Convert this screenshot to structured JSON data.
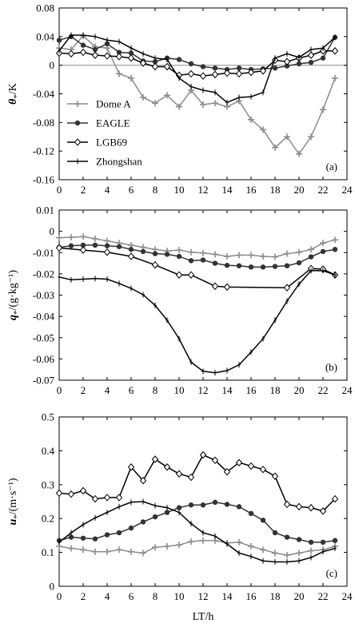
{
  "figure": {
    "xlabel": "LT/h",
    "x_ticks": [
      0,
      2,
      4,
      6,
      8,
      10,
      12,
      14,
      16,
      18,
      20,
      22,
      24
    ]
  },
  "series_styles": [
    {
      "name": "Dome A",
      "color": "#8c8c8c",
      "marker": "plus"
    },
    {
      "name": "EAGLE",
      "color": "#333333",
      "marker": "dot"
    },
    {
      "name": "LGB69",
      "color": "#000000",
      "marker": "diamond"
    },
    {
      "name": "Zhongshan",
      "color": "#000000",
      "marker": "tick"
    }
  ],
  "chart_data": [
    {
      "type": "line",
      "panel_label": "(a)",
      "ylabel_main": "θ",
      "ylabel_sub": "*",
      "ylabel_unit": "/K",
      "xlim": [
        0,
        24
      ],
      "ylim": [
        -0.16,
        0.08
      ],
      "y_ticks": [
        "0.08",
        "0.04",
        "0",
        "-0.04",
        "-0.08",
        "-0.12",
        "-0.16"
      ],
      "y_tick_values": [
        0.08,
        0.04,
        0,
        -0.04,
        -0.08,
        -0.12,
        -0.16
      ],
      "zero_line": true,
      "legend": {
        "placement": "middle-left",
        "entries": [
          "Dome A",
          "EAGLE",
          "LGB69",
          "Zhongshan"
        ]
      },
      "series": [
        {
          "name": "Dome A",
          "x": [
            0,
            1,
            2,
            3,
            4,
            5,
            6,
            7,
            8,
            9,
            10,
            11,
            12,
            13,
            14,
            15,
            16,
            17,
            18,
            19,
            20,
            21,
            22,
            23
          ],
          "values": [
            0.024,
            0.022,
            0.041,
            0.026,
            0.024,
            -0.012,
            -0.018,
            -0.045,
            -0.053,
            -0.042,
            -0.058,
            -0.035,
            -0.055,
            -0.053,
            -0.058,
            -0.05,
            -0.076,
            -0.09,
            -0.115,
            -0.1,
            -0.124,
            -0.1,
            -0.062,
            -0.018
          ]
        },
        {
          "name": "EAGLE",
          "x": [
            0,
            1,
            2,
            3,
            4,
            5,
            6,
            7,
            8,
            9,
            10,
            11,
            12,
            13,
            14,
            15,
            16,
            17,
            18,
            19,
            20,
            21,
            22,
            23
          ],
          "values": [
            0.035,
            0.04,
            0.028,
            0.022,
            0.03,
            0.018,
            0.017,
            0.006,
            0.005,
            0.01,
            0.008,
            0.002,
            -0.002,
            -0.004,
            -0.006,
            -0.004,
            -0.006,
            -0.005,
            -0.004,
            -0.001,
            0.002,
            0.004,
            0.01,
            0.039
          ]
        },
        {
          "name": "LGB69",
          "x": [
            0,
            1,
            2,
            3,
            4,
            5,
            6,
            7,
            8,
            9,
            10,
            11,
            12,
            13,
            14,
            15,
            16,
            17,
            18,
            19,
            20,
            21,
            22,
            23
          ],
          "values": [
            0.017,
            0.016,
            0.018,
            0.014,
            0.013,
            0.012,
            0.01,
            0.003,
            -0.002,
            -0.002,
            -0.014,
            -0.012,
            -0.015,
            -0.013,
            -0.011,
            -0.012,
            -0.01,
            -0.008,
            0.007,
            0.005,
            0.01,
            0.014,
            0.02,
            0.02
          ]
        },
        {
          "name": "Zhongshan",
          "x": [
            0,
            1,
            2,
            3,
            4,
            5,
            6,
            7,
            8,
            9,
            10,
            11,
            12,
            13,
            14,
            15,
            16,
            17,
            18,
            19,
            20,
            21,
            22,
            23
          ],
          "values": [
            0.02,
            0.042,
            0.042,
            0.04,
            0.035,
            0.033,
            0.024,
            0.016,
            0.01,
            0.008,
            -0.018,
            -0.03,
            -0.035,
            -0.038,
            -0.052,
            -0.045,
            -0.044,
            -0.038,
            0.01,
            0.016,
            0.011,
            0.022,
            0.024,
            0.039
          ]
        }
      ]
    },
    {
      "type": "line",
      "panel_label": "(b)",
      "ylabel_main": "q",
      "ylabel_sub": "*",
      "ylabel_unit": "/(g·kg⁻¹)",
      "xlim": [
        0,
        24
      ],
      "ylim": [
        -0.07,
        0.01
      ],
      "y_ticks": [
        "0.01",
        "0",
        "-0.01",
        "-0.02",
        "-0.03",
        "-0.04",
        "-0.05",
        "-0.06",
        "-0.07"
      ],
      "y_tick_values": [
        0.01,
        0,
        -0.01,
        -0.02,
        -0.03,
        -0.04,
        -0.05,
        -0.06,
        -0.07
      ],
      "series": [
        {
          "name": "Dome A",
          "x": [
            0,
            1,
            2,
            3,
            4,
            5,
            6,
            7,
            8,
            9,
            10,
            11,
            12,
            13,
            14,
            15,
            16,
            17,
            18,
            19,
            20,
            21,
            22,
            23
          ],
          "values": [
            -0.003,
            -0.0028,
            -0.0025,
            -0.0035,
            -0.0045,
            -0.0055,
            -0.0065,
            -0.0075,
            -0.0085,
            -0.0092,
            -0.0088,
            -0.0098,
            -0.0102,
            -0.0108,
            -0.0118,
            -0.0112,
            -0.0112,
            -0.0118,
            -0.012,
            -0.0105,
            -0.0098,
            -0.0085,
            -0.0055,
            -0.004
          ]
        },
        {
          "name": "EAGLE",
          "x": [
            0,
            1,
            2,
            3,
            4,
            5,
            6,
            7,
            8,
            9,
            10,
            11,
            12,
            13,
            14,
            15,
            16,
            17,
            18,
            19,
            20,
            21,
            22,
            23
          ],
          "values": [
            -0.0075,
            -0.0068,
            -0.0065,
            -0.0065,
            -0.0068,
            -0.0072,
            -0.0085,
            -0.0095,
            -0.0105,
            -0.0108,
            -0.0118,
            -0.0138,
            -0.0135,
            -0.015,
            -0.016,
            -0.0162,
            -0.0168,
            -0.0168,
            -0.0165,
            -0.0162,
            -0.0148,
            -0.012,
            -0.0095,
            -0.0085
          ]
        },
        {
          "name": "LGB69",
          "x": [
            0,
            2,
            4,
            6,
            8,
            10,
            11,
            13,
            14,
            19,
            21,
            22,
            23
          ],
          "values": [
            -0.0078,
            -0.0088,
            -0.0098,
            -0.0118,
            -0.0158,
            -0.0205,
            -0.0205,
            -0.0258,
            -0.0262,
            -0.0265,
            -0.0175,
            -0.0178,
            -0.0205
          ]
        },
        {
          "name": "Zhongshan",
          "x": [
            0,
            1,
            2,
            3,
            4,
            5,
            6,
            7,
            8,
            9,
            10,
            11,
            12,
            13,
            14,
            15,
            16,
            17,
            18,
            19,
            20,
            21,
            22,
            23
          ],
          "values": [
            -0.0215,
            -0.0228,
            -0.0225,
            -0.0222,
            -0.0225,
            -0.0245,
            -0.0268,
            -0.0298,
            -0.0348,
            -0.0418,
            -0.0505,
            -0.0615,
            -0.0658,
            -0.0665,
            -0.0655,
            -0.0628,
            -0.0568,
            -0.0505,
            -0.0418,
            -0.0328,
            -0.0248,
            -0.0185,
            -0.0185,
            -0.0205
          ]
        }
      ]
    },
    {
      "type": "line",
      "panel_label": "(c)",
      "ylabel_main": "u",
      "ylabel_sub": "*",
      "ylabel_unit": "/(m·s⁻¹)",
      "xlim": [
        0,
        24
      ],
      "ylim": [
        0,
        0.5
      ],
      "y_ticks": [
        "0.5",
        "0.4",
        "0.3",
        "0.2",
        "0.1",
        "0"
      ],
      "y_tick_values": [
        0.5,
        0.4,
        0.3,
        0.2,
        0.1,
        0
      ],
      "series": [
        {
          "name": "Dome A",
          "x": [
            0,
            1,
            2,
            3,
            4,
            5,
            6,
            7,
            8,
            9,
            10,
            11,
            12,
            13,
            14,
            15,
            16,
            17,
            18,
            19,
            20,
            21,
            22,
            23
          ],
          "values": [
            0.118,
            0.112,
            0.108,
            0.102,
            0.102,
            0.108,
            0.102,
            0.098,
            0.115,
            0.118,
            0.122,
            0.132,
            0.135,
            0.135,
            0.128,
            0.13,
            0.118,
            0.108,
            0.098,
            0.092,
            0.098,
            0.105,
            0.108,
            0.118
          ]
        },
        {
          "name": "EAGLE",
          "x": [
            0,
            1,
            2,
            3,
            4,
            5,
            6,
            7,
            8,
            9,
            10,
            11,
            12,
            13,
            14,
            15,
            16,
            17,
            18,
            19,
            20,
            21,
            22,
            23
          ],
          "values": [
            0.135,
            0.145,
            0.142,
            0.14,
            0.152,
            0.158,
            0.172,
            0.19,
            0.205,
            0.218,
            0.232,
            0.24,
            0.24,
            0.248,
            0.242,
            0.235,
            0.215,
            0.195,
            0.158,
            0.145,
            0.138,
            0.13,
            0.13,
            0.135
          ]
        },
        {
          "name": "LGB69",
          "x": [
            0,
            1,
            2,
            3,
            4,
            5,
            6,
            7,
            8,
            9,
            10,
            11,
            12,
            13,
            14,
            15,
            16,
            17,
            18,
            19,
            20,
            21,
            22,
            23
          ],
          "values": [
            0.275,
            0.272,
            0.282,
            0.258,
            0.262,
            0.262,
            0.352,
            0.312,
            0.375,
            0.352,
            0.332,
            0.322,
            0.388,
            0.372,
            0.338,
            0.365,
            0.355,
            0.345,
            0.325,
            0.242,
            0.235,
            0.232,
            0.222,
            0.258
          ]
        },
        {
          "name": "Zhongshan",
          "x": [
            0,
            1,
            2,
            3,
            4,
            5,
            6,
            7,
            8,
            9,
            10,
            11,
            12,
            13,
            14,
            15,
            16,
            17,
            18,
            19,
            20,
            21,
            22,
            23
          ],
          "values": [
            0.13,
            0.158,
            0.182,
            0.202,
            0.218,
            0.235,
            0.248,
            0.25,
            0.238,
            0.232,
            0.218,
            0.185,
            0.158,
            0.148,
            0.125,
            0.098,
            0.088,
            0.075,
            0.072,
            0.072,
            0.075,
            0.085,
            0.102,
            0.112
          ]
        }
      ]
    }
  ]
}
